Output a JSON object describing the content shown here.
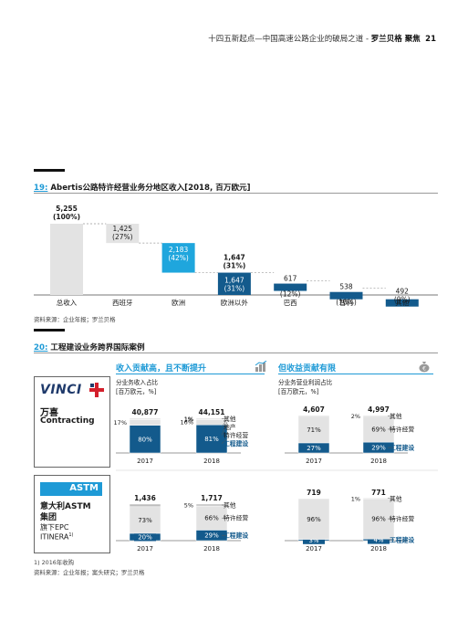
{
  "header": {
    "text": "十四五新起点—中国高速公路企业的破局之道 - ",
    "brand": "罗兰贝格 聚焦",
    "page": "21"
  },
  "fig19": {
    "number": "19:",
    "title": "Abertis公路特许经营业务分地区收入[2018, 百万欧元]",
    "source": "资料来源：企业年报；罗兰贝格"
  },
  "fig20": {
    "number": "20:",
    "title": "工程建设业务跨界国际案例",
    "left_heading": "收入贡献高，且不断提升",
    "right_heading": "但收益贡献有限",
    "left_axis_title_1": "分业务收入占比",
    "left_axis_title_2": "[百万欧元，%]",
    "right_axis_title_1": "分业务营业利润占比",
    "right_axis_title_2": "[百万欧元，%]",
    "vinci_logo": "VINCI",
    "vinci_name_1": "万喜",
    "vinci_name_2": "Contracting",
    "astm_logo": "ASTM",
    "astm_name_1": "意大利ASTM",
    "astm_name_2": "集团",
    "astm_name_3": "旗下EPC",
    "astm_name_4": "ITINERA",
    "astm_sup": "1)",
    "footnote": "1) 2016年收购",
    "source": "资料来源：企业年报；案头研究；罗兰贝格"
  },
  "colors": {
    "accent": "#1e9ad6",
    "dark_blue": "#135a8c",
    "grey": "#e3e3e3",
    "teal": "#1fa6dd"
  },
  "chart_data": [
    {
      "type": "bar",
      "subtype": "waterfall",
      "title": "Abertis公路特许经营业务分地区收入[2018, 百万欧元]",
      "categories": [
        "总收入",
        "西班牙",
        "欧洲",
        "欧洲以外",
        "巴西",
        "智利",
        "其他"
      ],
      "values": [
        5255,
        1425,
        2183,
        1647,
        617,
        538,
        492
      ],
      "value_labels": [
        "5,255",
        "1,425",
        "2,183",
        "1,647",
        "617",
        "538",
        "492"
      ],
      "pct_labels": [
        "(100%)",
        "(27%)",
        "(42%)",
        "(31%)",
        "(12%)",
        "(10%)",
        "(9%)"
      ],
      "subtotal_labels": {
        "value": "1,647",
        "pct": "(31%)"
      }
    },
    {
      "type": "bar",
      "subtype": "stacked-100",
      "company": "万喜 Contracting",
      "title": "分业务收入占比",
      "categories": [
        "2017",
        "2018"
      ],
      "totals": [
        "40,877",
        "44,151"
      ],
      "series": [
        {
          "name": "工程建设",
          "values": [
            80,
            81
          ],
          "labels": [
            "80%",
            "81%"
          ]
        },
        {
          "name": "特许经营",
          "values": [
            17,
            16
          ],
          "labels": [
            "17%",
            "16%"
          ]
        },
        {
          "name": "地产",
          "values": [
            1,
            1
          ],
          "labels": [
            "",
            "1%"
          ]
        },
        {
          "name": "其他",
          "values": [
            1,
            1
          ],
          "labels": [
            "",
            "1%"
          ]
        }
      ]
    },
    {
      "type": "bar",
      "subtype": "stacked-100",
      "company": "万喜 Contracting",
      "title": "分业务营业利润占比",
      "categories": [
        "2017",
        "2018"
      ],
      "totals": [
        "4,607",
        "4,997"
      ],
      "series": [
        {
          "name": "工程建设",
          "values": [
            27,
            29
          ],
          "labels": [
            "27%",
            "29%"
          ]
        },
        {
          "name": "特许经营",
          "values": [
            71,
            69
          ],
          "labels": [
            "71%",
            "69%"
          ]
        },
        {
          "name": "其他",
          "values": [
            2,
            2
          ],
          "labels": [
            "",
            "2%"
          ]
        }
      ]
    },
    {
      "type": "bar",
      "subtype": "stacked-100",
      "company": "意大利ASTM集团 旗下EPC ITINERA",
      "title": "分业务收入占比",
      "categories": [
        "2017",
        "2018"
      ],
      "totals": [
        "1,436",
        "1,717"
      ],
      "series": [
        {
          "name": "工程建设",
          "values": [
            20,
            29
          ],
          "labels": [
            "20%",
            "29%"
          ]
        },
        {
          "name": "特许经营",
          "values": [
            73,
            66
          ],
          "labels": [
            "73%",
            "66%"
          ]
        },
        {
          "name": "其他",
          "values": [
            7,
            5
          ],
          "labels": [
            "",
            "5%"
          ]
        }
      ]
    },
    {
      "type": "bar",
      "subtype": "stacked-100",
      "company": "意大利ASTM集团 旗下EPC ITINERA",
      "title": "分业务营业利润占比",
      "categories": [
        "2017",
        "2018"
      ],
      "totals": [
        "719",
        "771"
      ],
      "series": [
        {
          "name": "工程建设",
          "values": [
            3,
            4
          ],
          "labels": [
            "3%",
            "4%"
          ]
        },
        {
          "name": "特许经营",
          "values": [
            96,
            96
          ],
          "labels": [
            "96%",
            "96%"
          ]
        },
        {
          "name": "其他",
          "values": [
            1,
            1
          ],
          "labels": [
            "",
            "1%"
          ]
        }
      ]
    }
  ]
}
